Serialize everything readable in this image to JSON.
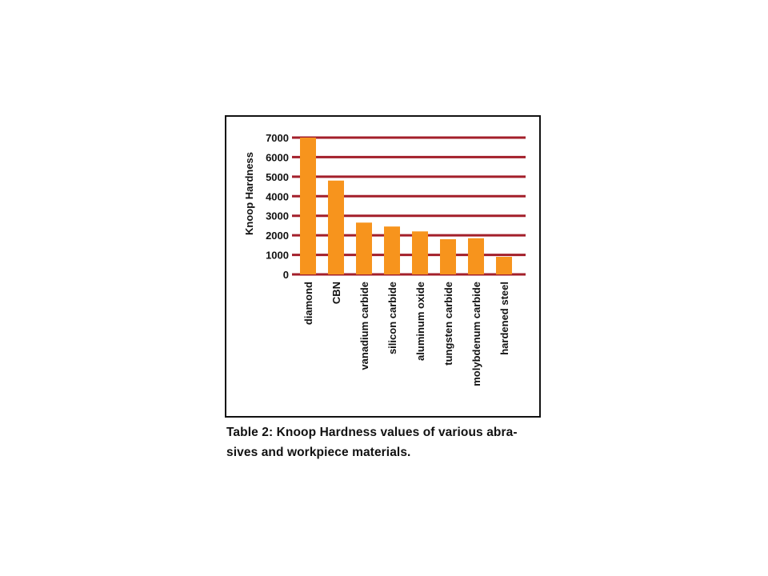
{
  "chart_data": {
    "type": "bar",
    "title": "",
    "xlabel": "",
    "ylabel": "Knoop Hardness",
    "ylim": [
      0,
      7000
    ],
    "yticks": [
      0,
      1000,
      2000,
      3000,
      4000,
      5000,
      6000,
      7000
    ],
    "grid": true,
    "legend": "none",
    "categories": [
      "diamond",
      "CBN",
      "vanadium carbide",
      "silicon carbide",
      "aluminum oxide",
      "tungsten carbide",
      "molybdenum carbide",
      "hardened steel"
    ],
    "values": [
      7000,
      4800,
      2650,
      2450,
      2200,
      1800,
      1850,
      900
    ],
    "colors": {
      "bar": "#f7941d",
      "grid": "#a31f2a",
      "text": "#111111"
    }
  },
  "caption": {
    "line1": "Table 2: Knoop Hardness values of various abra-",
    "line2": "sives and workpiece materials."
  }
}
